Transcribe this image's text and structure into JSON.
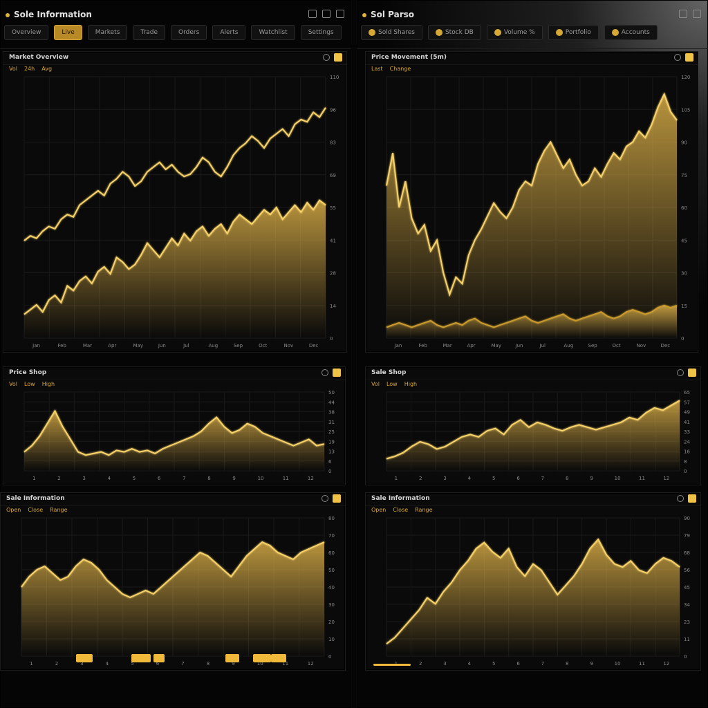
{
  "colors": {
    "accent": "#f2c14e",
    "accent_dark": "#b78a26",
    "bg": "#050505",
    "grid": "#1c1c1c"
  },
  "left": {
    "title": "Sole Information",
    "toolbar": [
      "Overview",
      "Live",
      "Markets",
      "Trade",
      "Orders",
      "Alerts",
      "Watchlist",
      "Settings"
    ],
    "toolbar_active": 1
  },
  "right": {
    "title": "Sol Parso",
    "toolbar": [
      "Sold Shares",
      "Stock DB",
      "Volume %",
      "Portfolio",
      "Accounts"
    ]
  },
  "panels": [
    {
      "title": "Market Overview",
      "subtitle": [
        "Vol",
        "24h",
        "Avg"
      ]
    },
    {
      "title": "Price Movement (5m)",
      "subtitle": [
        "Last",
        "Change"
      ]
    },
    {
      "title": "Price Shop",
      "subtitle": [
        "Vol",
        "Low",
        "High"
      ]
    },
    {
      "title": "Sale Shop",
      "subtitle": [
        "Vol",
        "Low",
        "High"
      ]
    },
    {
      "title": "Sale Information",
      "subtitle": [
        "Open",
        "Close",
        "Range"
      ]
    },
    {
      "title": "Sale Information",
      "subtitle": [
        "Open",
        "Close",
        "Range"
      ]
    }
  ],
  "chart_data": [
    {
      "type": "line",
      "panel": 0,
      "series": [
        {
          "values": [
            41,
            43,
            42,
            45,
            47,
            46,
            50,
            52,
            51,
            56,
            58,
            60,
            62,
            60,
            65,
            67,
            70,
            68,
            64,
            66,
            70,
            72,
            74,
            71,
            73,
            70,
            68,
            69,
            72,
            76,
            74,
            70,
            68,
            72,
            77,
            80,
            82,
            85,
            83,
            80,
            84,
            86,
            88,
            85,
            90,
            92,
            91,
            95,
            93,
            97
          ]
        },
        {
          "values": [
            10,
            12,
            14,
            11,
            16,
            18,
            15,
            22,
            20,
            24,
            26,
            23,
            28,
            30,
            27,
            34,
            32,
            29,
            31,
            35,
            40,
            37,
            34,
            38,
            42,
            39,
            44,
            41,
            45,
            47,
            43,
            46,
            48,
            44,
            49,
            52,
            50,
            48,
            51,
            54,
            52,
            55,
            50,
            53,
            56,
            53,
            57,
            54,
            58,
            56
          ]
        }
      ],
      "ylim": [
        0,
        110
      ],
      "x_ticks": [
        "Jan",
        "Feb",
        "Mar",
        "Apr",
        "May",
        "Jun",
        "Jul",
        "Aug",
        "Sep",
        "Oct",
        "Nov",
        "Dec"
      ]
    },
    {
      "type": "area",
      "panel": 1,
      "series": [
        {
          "values": [
            70,
            85,
            60,
            72,
            55,
            48,
            52,
            40,
            45,
            30,
            20,
            28,
            25,
            38,
            45,
            50,
            56,
            62,
            58,
            55,
            60,
            68,
            72,
            70,
            80,
            86,
            90,
            84,
            78,
            82,
            75,
            70,
            72,
            78,
            74,
            80,
            85,
            82,
            88,
            90,
            95,
            92,
            98,
            106,
            112,
            104,
            100
          ]
        },
        {
          "values": [
            5,
            6,
            7,
            6,
            5,
            6,
            7,
            8,
            6,
            5,
            6,
            7,
            6,
            8,
            9,
            7,
            6,
            5,
            6,
            7,
            8,
            9,
            10,
            8,
            7,
            8,
            9,
            10,
            11,
            9,
            8,
            9,
            10,
            11,
            12,
            10,
            9,
            10,
            12,
            13,
            12,
            11,
            12,
            14,
            15,
            14,
            15
          ]
        }
      ],
      "ylim": [
        0,
        120
      ],
      "x_ticks": [
        "Jan",
        "Feb",
        "Mar",
        "Apr",
        "May",
        "Jun",
        "Jul",
        "Aug",
        "Sep",
        "Oct",
        "Nov",
        "Dec"
      ]
    },
    {
      "type": "area",
      "panel": 2,
      "series": [
        {
          "values": [
            12,
            16,
            22,
            30,
            38,
            28,
            20,
            12,
            10,
            11,
            12,
            10,
            13,
            12,
            14,
            12,
            13,
            11,
            14,
            16,
            18,
            20,
            22,
            25,
            30,
            34,
            28,
            24,
            26,
            30,
            28,
            24,
            22,
            20,
            18,
            16,
            18,
            20,
            16,
            17
          ]
        }
      ],
      "ylim": [
        0,
        50
      ],
      "x_ticks": [
        "1",
        "2",
        "3",
        "4",
        "5",
        "6",
        "7",
        "8",
        "9",
        "10",
        "11",
        "12"
      ]
    },
    {
      "type": "area",
      "panel": 3,
      "series": [
        {
          "values": [
            10,
            12,
            15,
            20,
            24,
            22,
            18,
            20,
            24,
            28,
            30,
            28,
            33,
            35,
            30,
            38,
            42,
            36,
            40,
            38,
            35,
            33,
            36,
            38,
            36,
            34,
            36,
            38,
            40,
            44,
            42,
            48,
            52,
            50,
            54,
            58
          ]
        }
      ],
      "ylim": [
        0,
        65
      ],
      "x_ticks": [
        "1",
        "2",
        "3",
        "4",
        "5",
        "6",
        "7",
        "8",
        "9",
        "10",
        "11",
        "12"
      ]
    },
    {
      "type": "area",
      "panel": 4,
      "series": [
        {
          "values": [
            40,
            46,
            50,
            52,
            48,
            44,
            46,
            52,
            56,
            54,
            50,
            44,
            40,
            36,
            34,
            36,
            38,
            36,
            40,
            44,
            48,
            52,
            56,
            60,
            58,
            54,
            50,
            46,
            52,
            58,
            62,
            66,
            64,
            60,
            58,
            56,
            60,
            62,
            64,
            66
          ]
        }
      ],
      "ylim": [
        0,
        80
      ],
      "x_ticks": [
        "1",
        "2",
        "3",
        "4",
        "5",
        "6",
        "7",
        "8",
        "9",
        "10",
        "11",
        "12"
      ]
    },
    {
      "type": "area",
      "panel": 5,
      "series": [
        {
          "values": [
            8,
            12,
            18,
            24,
            30,
            38,
            34,
            42,
            48,
            56,
            62,
            70,
            74,
            68,
            64,
            70,
            58,
            52,
            60,
            56,
            48,
            40,
            46,
            52,
            60,
            70,
            76,
            66,
            60,
            58,
            62,
            56,
            54,
            60,
            64,
            62,
            58
          ]
        }
      ],
      "ylim": [
        0,
        90
      ],
      "x_ticks": [
        "1",
        "2",
        "3",
        "4",
        "5",
        "6",
        "7",
        "8",
        "9",
        "10",
        "11",
        "12"
      ]
    }
  ]
}
